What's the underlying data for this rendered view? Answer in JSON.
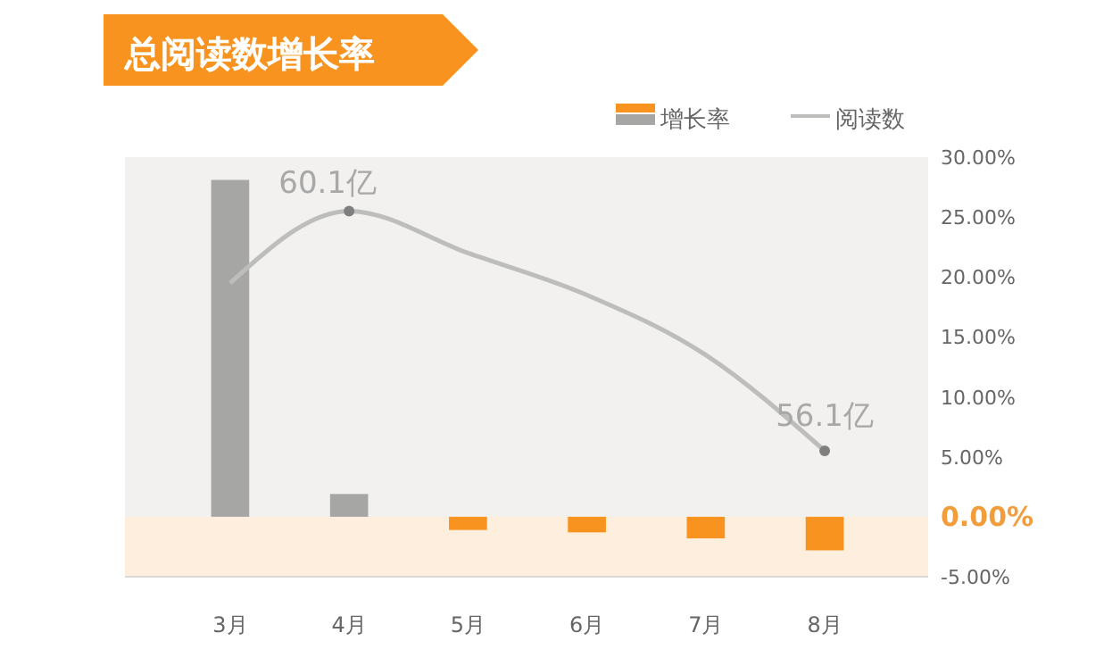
{
  "chart_data": {
    "type": "bar",
    "title": "总阅读数增长率",
    "categories": [
      "3月",
      "4月",
      "5月",
      "6月",
      "7月",
      "8月"
    ],
    "series": [
      {
        "name": "增长率",
        "colors": [
          "#a6a6a4",
          "#a6a6a4",
          "#f7931e",
          "#f7931e",
          "#f7931e",
          "#f7931e"
        ],
        "values": [
          28.1,
          1.9,
          -1.1,
          -1.3,
          -1.8,
          -2.8
        ]
      },
      {
        "name": "阅读数",
        "type": "line",
        "axis": "y2",
        "color": "#bdbdbb",
        "values": [
          58.9,
          60.1,
          59.4,
          58.7,
          57.7,
          56.1
        ],
        "value_labels": [
          null,
          "60.1亿",
          null,
          null,
          null,
          "56.1亿"
        ]
      }
    ],
    "ylim": [
      -5,
      30
    ],
    "yticks": [
      {
        "value": 30,
        "label": "30.00%"
      },
      {
        "value": 25,
        "label": "25.00%"
      },
      {
        "value": 20,
        "label": "20.00%"
      },
      {
        "value": 15,
        "label": "15.00%"
      },
      {
        "value": 10,
        "label": "10.00%"
      },
      {
        "value": 5,
        "label": "5.00%"
      },
      {
        "value": 0,
        "label": "0.00%"
      },
      {
        "value": -5,
        "label": "-5.00%"
      }
    ],
    "y2lim": [
      54,
      61
    ],
    "bands": [
      {
        "axis": "y",
        "from": -5,
        "to": 0,
        "color": "#fdeedd"
      }
    ],
    "legend": "top right",
    "grid": false
  }
}
